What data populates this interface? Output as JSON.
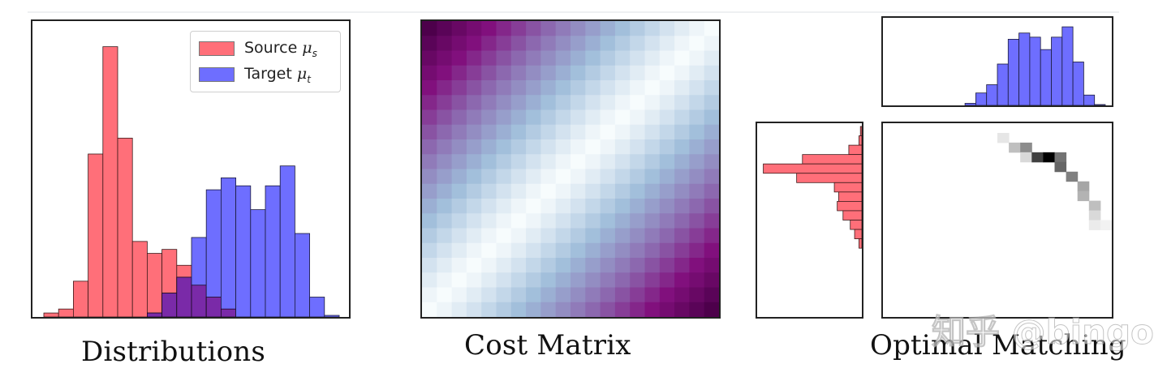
{
  "captions": {
    "distributions": "Distributions",
    "cost_matrix": "Cost Matrix",
    "optimal_matching": "Optimal Matching"
  },
  "legend": {
    "source_text": "Source ",
    "source_symbol": "μ",
    "source_sub": "s",
    "target_text": "Target ",
    "target_symbol": "μ",
    "target_sub": "t"
  },
  "watermark": "知乎 @bingo",
  "colors": {
    "source": "#ff5a66",
    "target": "#5a5aff",
    "overlap": "#7a2aa8",
    "frame": "#222222"
  },
  "chart_data": [
    {
      "type": "bar",
      "title": "",
      "histogram": true,
      "bins": 20,
      "x_domain": [
        0,
        1
      ],
      "xlabel": "Distributions",
      "ylabel": "",
      "grid": false,
      "legend_position": "top-right",
      "series": [
        {
          "name": "Source μs",
          "color": "#ff5a66",
          "values": [
            0.5,
            1,
            4.5,
            20.5,
            34,
            22.5,
            9.5,
            8,
            8.5,
            6.5,
            4,
            2.5,
            1,
            0,
            0,
            0,
            0,
            0,
            0,
            0
          ]
        },
        {
          "name": "Target μt",
          "color": "#5a5aff",
          "values": [
            0,
            0,
            0,
            0,
            0,
            0,
            0,
            0.5,
            3,
            5,
            10,
            16,
            17.5,
            16.5,
            13.5,
            16.5,
            19,
            10.5,
            2.5,
            0.2
          ]
        }
      ]
    },
    {
      "type": "heatmap",
      "title": "",
      "xlabel": "Cost Matrix",
      "rows": 20,
      "cols": 20,
      "cost": "squared_distance",
      "colormap": [
        "#f7fcfd",
        "#9ebcda",
        "#8c6bb1",
        "#810f7c",
        "#4d004b"
      ]
    },
    {
      "type": "bar",
      "title": "",
      "role": "target marginal (top)",
      "color": "#5a5aff",
      "values": [
        0,
        0,
        0,
        0,
        0,
        0,
        0,
        0.5,
        3,
        5,
        10,
        16,
        17.5,
        16.5,
        13.5,
        16.5,
        19,
        10.5,
        2.5,
        0.2
      ]
    },
    {
      "type": "bar",
      "title": "",
      "role": "source marginal (left, horizontal)",
      "color": "#ff5a66",
      "values": [
        0.5,
        1,
        4.5,
        20.5,
        34,
        22.5,
        9.5,
        8,
        8.5,
        6.5,
        4,
        2.5,
        1,
        0,
        0,
        0,
        0,
        0,
        0,
        0
      ]
    },
    {
      "type": "heatmap",
      "title": "",
      "xlabel": "Optimal Matching",
      "rows": 20,
      "cols": 20,
      "colormap": [
        "#ffffff",
        "#000000"
      ],
      "cells": [
        {
          "row": 1,
          "col": 10,
          "value": 0.1
        },
        {
          "row": 2,
          "col": 11,
          "value": 0.25
        },
        {
          "row": 2,
          "col": 12,
          "value": 0.45
        },
        {
          "row": 3,
          "col": 12,
          "value": 0.15
        },
        {
          "row": 3,
          "col": 13,
          "value": 0.75
        },
        {
          "row": 3,
          "col": 14,
          "value": 1.0
        },
        {
          "row": 3,
          "col": 15,
          "value": 0.55
        },
        {
          "row": 4,
          "col": 15,
          "value": 0.6
        },
        {
          "row": 5,
          "col": 16,
          "value": 0.5
        },
        {
          "row": 6,
          "col": 17,
          "value": 0.35
        },
        {
          "row": 7,
          "col": 17,
          "value": 0.3
        },
        {
          "row": 8,
          "col": 18,
          "value": 0.25
        },
        {
          "row": 9,
          "col": 18,
          "value": 0.15
        },
        {
          "row": 10,
          "col": 18,
          "value": 0.08
        },
        {
          "row": 10,
          "col": 19,
          "value": 0.05
        }
      ]
    }
  ]
}
